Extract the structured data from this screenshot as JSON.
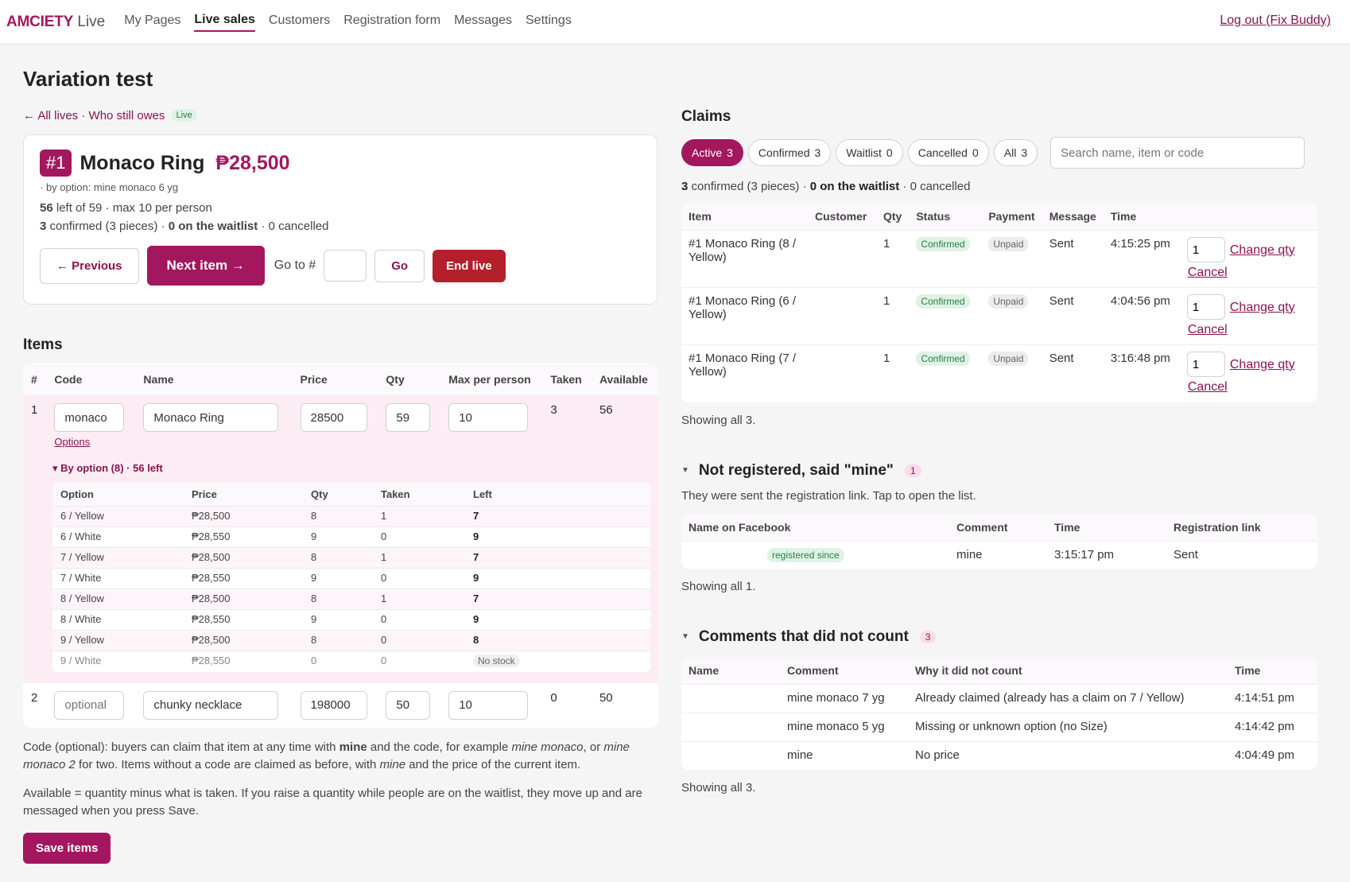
{
  "nav": {
    "brand_bold": "AMCIETY",
    "brand_light": "Live",
    "links": [
      "My Pages",
      "Live sales",
      "Customers",
      "Registration form",
      "Messages",
      "Settings"
    ],
    "active_index": 1,
    "logout": "Log out (Fix Buddy)"
  },
  "page": {
    "title": "Variation test",
    "crumb_all": "← All lives",
    "crumb_sep": " · ",
    "crumb_owes": "Who still owes",
    "live_badge": "Live"
  },
  "current": {
    "number": "#1",
    "name": "Monaco Ring",
    "price": "₱28,500",
    "by_option": "· by option: mine monaco 6 yg",
    "left": "56",
    "left_rest": " left of 59 · max 10 per person",
    "confirmed": "3",
    "confirmed_rest": " confirmed (3 pieces) · ",
    "waitlist": "0 on the waitlist",
    "cancelled_rest": " · 0 cancelled",
    "prev": "← Previous",
    "next": "Next item →",
    "goto_label": "Go to #",
    "go": "Go",
    "end": "End live"
  },
  "items": {
    "heading": "Items",
    "headers": [
      "#",
      "Code",
      "Name",
      "Price",
      "Qty",
      "Max per person",
      "Taken",
      "Available"
    ],
    "rows": [
      {
        "num": "1",
        "code": "monaco",
        "name": "Monaco Ring",
        "price": "28500",
        "qty": "59",
        "max": "10",
        "taken": "3",
        "available": "56",
        "options_link": "Options"
      },
      {
        "num": "2",
        "code_placeholder": "optional",
        "name": "chunky necklace",
        "price": "198000",
        "qty": "50",
        "max": "10",
        "taken": "0",
        "available": "50"
      }
    ],
    "variants_toggle": "▾ By option (8) · 56 left",
    "variant_headers": [
      "Option",
      "Price",
      "Qty",
      "Taken",
      "Left"
    ],
    "variants": [
      {
        "option": "6 / Yellow",
        "price": "₱28,500",
        "qty": "8",
        "taken": "1",
        "left": "7"
      },
      {
        "option": "6 / White",
        "price": "₱28,550",
        "qty": "9",
        "taken": "0",
        "left": "9"
      },
      {
        "option": "7 / Yellow",
        "price": "₱28,500",
        "qty": "8",
        "taken": "1",
        "left": "7"
      },
      {
        "option": "7 / White",
        "price": "₱28,550",
        "qty": "9",
        "taken": "0",
        "left": "9"
      },
      {
        "option": "8 / Yellow",
        "price": "₱28,500",
        "qty": "8",
        "taken": "1",
        "left": "7"
      },
      {
        "option": "8 / White",
        "price": "₱28,550",
        "qty": "9",
        "taken": "0",
        "left": "9"
      },
      {
        "option": "9 / Yellow",
        "price": "₱28,500",
        "qty": "8",
        "taken": "0",
        "left": "8"
      },
      {
        "option": "9 / White",
        "price": "₱28,550",
        "qty": "0",
        "taken": "0",
        "left": "No stock"
      }
    ],
    "help_1_a": "Code (optional): buyers can claim that item at any time with ",
    "help_1_b": "mine",
    "help_1_c": " and the code, for example ",
    "help_1_d": "mine monaco",
    "help_1_e": ", or ",
    "help_1_f": "mine monaco 2",
    "help_1_g": " for two. Items without a code are claimed as before, with ",
    "help_1_h": "mine",
    "help_1_i": " and the price of the current item.",
    "help_2": "Available = quantity minus what is taken. If you raise a quantity while people are on the waitlist, they move up and are messaged when you press Save.",
    "save": "Save items"
  },
  "claims": {
    "heading": "Claims",
    "filters": [
      {
        "label": "Active",
        "count": "3"
      },
      {
        "label": "Confirmed",
        "count": "3"
      },
      {
        "label": "Waitlist",
        "count": "0"
      },
      {
        "label": "Cancelled",
        "count": "0"
      },
      {
        "label": "All",
        "count": "3"
      }
    ],
    "search_placeholder": "Search name, item or code",
    "summary_a": "3",
    "summary_b": " confirmed (3 pieces) · ",
    "summary_c": "0 on the waitlist",
    "summary_d": " · 0 cancelled",
    "headers": [
      "Item",
      "Customer",
      "Qty",
      "Status",
      "Payment",
      "Message",
      "Time",
      ""
    ],
    "rows": [
      {
        "item": "#1 Monaco Ring (8 / Yellow)",
        "customer": "",
        "qty": "1",
        "status": "Confirmed",
        "payment": "Unpaid",
        "message": "Sent",
        "time": "4:15:25 pm",
        "qty_val": "1"
      },
      {
        "item": "#1 Monaco Ring (6 / Yellow)",
        "customer": "",
        "qty": "1",
        "status": "Confirmed",
        "payment": "Unpaid",
        "message": "Sent",
        "time": "4:04:56 pm",
        "qty_val": "1"
      },
      {
        "item": "#1 Monaco Ring (7 / Yellow)",
        "customer": "",
        "qty": "1",
        "status": "Confirmed",
        "payment": "Unpaid",
        "message": "Sent",
        "time": "3:16:48 pm",
        "qty_val": "1"
      }
    ],
    "change_qty": "Change qty",
    "cancel": "Cancel",
    "showing": "Showing all 3."
  },
  "not_registered": {
    "title": "Not registered, said \"mine\"",
    "count": "1",
    "subtitle": "They were sent the registration link. Tap to open the list.",
    "headers": [
      "Name on Facebook",
      "Comment",
      "Time",
      "Registration link"
    ],
    "rows": [
      {
        "badge": "registered since",
        "comment": "mine",
        "time": "3:15:17 pm",
        "link": "Sent"
      }
    ],
    "showing": "Showing all 1."
  },
  "not_counted": {
    "title": "Comments that did not count",
    "count": "3",
    "headers": [
      "Name",
      "Comment",
      "Why it did not count",
      "Time"
    ],
    "rows": [
      {
        "name": "",
        "comment": "mine monaco 7 yg",
        "why": "Already claimed (already has a claim on 7 / Yellow)",
        "time": "4:14:51 pm"
      },
      {
        "name": "",
        "comment": "mine monaco 5 yg",
        "why": "Missing or unknown option (no Size)",
        "time": "4:14:42 pm"
      },
      {
        "name": "",
        "comment": "mine",
        "why": "No price",
        "time": "4:04:49 pm"
      }
    ],
    "showing": "Showing all 3."
  },
  "colors": {
    "brand": "#a3175f",
    "danger": "#b3202b",
    "confirmed": "#2d7c46"
  }
}
